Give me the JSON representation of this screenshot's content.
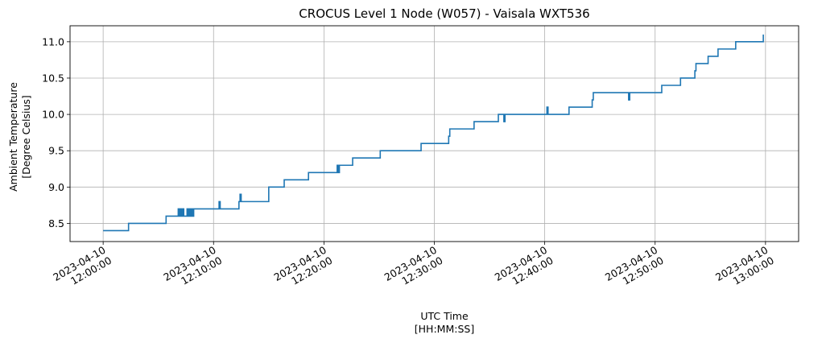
{
  "chart_data": {
    "type": "line",
    "title": "CROCUS Level 1 Node (W057) - Vaisala WXT536",
    "xlabel": [
      "UTC Time",
      "[HH:MM:SS]"
    ],
    "ylabel": [
      "Ambient Temperature",
      "[Degree Celsius]"
    ],
    "x_unit": "minutes after 2023-04-10 12:00:00 UTC",
    "xlim": [
      -3,
      63
    ],
    "ylim": [
      8.25,
      11.22
    ],
    "x_ticks": [
      {
        "value": 0,
        "date": "2023-04-10",
        "time": "12:00:00"
      },
      {
        "value": 10,
        "date": "2023-04-10",
        "time": "12:10:00"
      },
      {
        "value": 20,
        "date": "2023-04-10",
        "time": "12:20:00"
      },
      {
        "value": 30,
        "date": "2023-04-10",
        "time": "12:30:00"
      },
      {
        "value": 40,
        "date": "2023-04-10",
        "time": "12:40:00"
      },
      {
        "value": 50,
        "date": "2023-04-10",
        "time": "12:50:00"
      },
      {
        "value": 60,
        "date": "2023-04-10",
        "time": "13:00:00"
      }
    ],
    "y_ticks": [
      "8.5",
      "9.0",
      "9.5",
      "10.0",
      "10.5",
      "11.0"
    ],
    "grid": true,
    "color": "#1f77b4",
    "series": [
      {
        "x": [
          0,
          2.3,
          2.3,
          5.7,
          5.7,
          6.8,
          6.8,
          6.9,
          6.9,
          7.0,
          7.0,
          7.1,
          7.1,
          7.2,
          7.2,
          7.3,
          7.3,
          7.6,
          7.6,
          7.7,
          7.7,
          7.8,
          7.8,
          7.9,
          7.9,
          8.0,
          8.0,
          8.1,
          8.1,
          8.2,
          8.2,
          8.3,
          8.3,
          10.5,
          10.5,
          10.6,
          10.6,
          12.3,
          12.3,
          12.4,
          12.4,
          12.5,
          12.5,
          15.0,
          15.0,
          16.4,
          16.4,
          18.6,
          18.6,
          21.2,
          21.2,
          21.3,
          21.3,
          21.4,
          21.4,
          22.6,
          22.6,
          25.1,
          25.1,
          28.8,
          28.8,
          31.3,
          31.3,
          31.4,
          31.4,
          33.6,
          33.6,
          35.8,
          35.8,
          36.3,
          36.3,
          36.4,
          36.4,
          40.2,
          40.2,
          40.3,
          40.3,
          42.2,
          42.2,
          44.3,
          44.3,
          44.4,
          44.4,
          47.6,
          47.6,
          47.7,
          47.7,
          50.6,
          50.6,
          52.3,
          52.3,
          53.6,
          53.6,
          53.7,
          53.7,
          54.8,
          54.8,
          55.7,
          55.7,
          57.3,
          57.3,
          59.8,
          59.8
        ],
        "y": [
          8.4,
          8.4,
          8.5,
          8.5,
          8.6,
          8.6,
          8.7,
          8.7,
          8.6,
          8.6,
          8.7,
          8.7,
          8.6,
          8.6,
          8.7,
          8.7,
          8.6,
          8.6,
          8.7,
          8.7,
          8.6,
          8.6,
          8.7,
          8.7,
          8.6,
          8.6,
          8.7,
          8.7,
          8.6,
          8.6,
          8.7,
          8.7,
          8.7,
          8.7,
          8.8,
          8.8,
          8.7,
          8.7,
          8.8,
          8.8,
          8.9,
          8.9,
          8.8,
          8.8,
          9.0,
          9.0,
          9.1,
          9.1,
          9.2,
          9.2,
          9.3,
          9.3,
          9.2,
          9.2,
          9.3,
          9.3,
          9.4,
          9.4,
          9.5,
          9.5,
          9.6,
          9.6,
          9.7,
          9.7,
          9.8,
          9.8,
          9.9,
          9.9,
          10.0,
          10.0,
          9.9,
          9.9,
          10.0,
          10.0,
          10.1,
          10.1,
          10.0,
          10.0,
          10.1,
          10.1,
          10.2,
          10.2,
          10.3,
          10.3,
          10.2,
          10.2,
          10.3,
          10.3,
          10.4,
          10.4,
          10.5,
          10.5,
          10.6,
          10.6,
          10.7,
          10.7,
          10.8,
          10.8,
          10.9,
          10.9,
          11.0,
          11.0,
          11.1
        ]
      }
    ]
  }
}
